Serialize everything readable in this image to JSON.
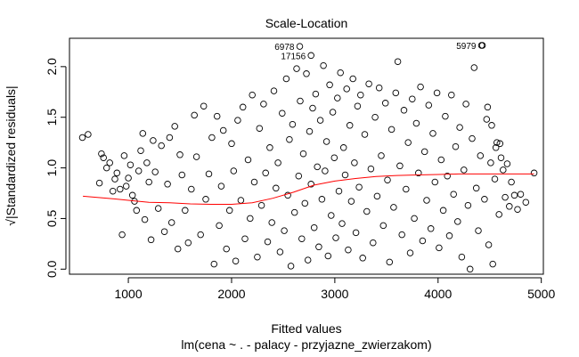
{
  "chart_data": {
    "type": "scatter",
    "title": "Scale-Location",
    "xlabel": "Fitted values",
    "subtitle": "lm(cena ~ . - palacy - przyjazne_zwierzakom)",
    "ylabel": "√|Standardized residuals|",
    "xlim": [
      430,
      5020
    ],
    "ylim": [
      -0.05,
      2.28
    ],
    "x_ticks": [
      {
        "value": 1000,
        "label": "1000"
      },
      {
        "value": 2000,
        "label": "2000"
      },
      {
        "value": 3000,
        "label": "3000"
      },
      {
        "value": 4000,
        "label": "4000"
      },
      {
        "value": 5000,
        "label": "5000"
      }
    ],
    "y_ticks": [
      {
        "value": 0.0,
        "label": "0.0"
      },
      {
        "value": 0.5,
        "label": "0.5"
      },
      {
        "value": 1.0,
        "label": "1.0"
      },
      {
        "value": 1.5,
        "label": "1.5"
      },
      {
        "value": 2.0,
        "label": "2.0"
      }
    ],
    "grid": false,
    "point_style": "open-circle",
    "point_color": "#000000",
    "smooth_color": "#ff0000",
    "smooth_line": [
      [
        560,
        0.72
      ],
      [
        800,
        0.7
      ],
      [
        1000,
        0.68
      ],
      [
        1200,
        0.66
      ],
      [
        1400,
        0.655
      ],
      [
        1600,
        0.645
      ],
      [
        1800,
        0.64
      ],
      [
        2000,
        0.64
      ],
      [
        2200,
        0.655
      ],
      [
        2400,
        0.7
      ],
      [
        2600,
        0.76
      ],
      [
        2800,
        0.83
      ],
      [
        3000,
        0.87
      ],
      [
        3200,
        0.895
      ],
      [
        3400,
        0.915
      ],
      [
        3600,
        0.925
      ],
      [
        3800,
        0.93
      ],
      [
        4000,
        0.935
      ],
      [
        4200,
        0.94
      ],
      [
        4400,
        0.94
      ],
      [
        4600,
        0.94
      ],
      [
        4800,
        0.94
      ],
      [
        4930,
        0.94
      ]
    ],
    "labeled_points": [
      {
        "id": "6978",
        "x": 2660,
        "y": 2.2
      },
      {
        "id": "17156",
        "x": 2770,
        "y": 2.11
      },
      {
        "id": "5979",
        "x": 4420,
        "y": 2.21
      }
    ],
    "points": [
      [
        555,
        1.3
      ],
      [
        610,
        1.33
      ],
      [
        720,
        0.85
      ],
      [
        740,
        1.14
      ],
      [
        760,
        1.1
      ],
      [
        790,
        1.0
      ],
      [
        820,
        1.05
      ],
      [
        850,
        0.77
      ],
      [
        870,
        0.89
      ],
      [
        890,
        0.95
      ],
      [
        920,
        0.79
      ],
      [
        940,
        0.34
      ],
      [
        960,
        1.12
      ],
      [
        980,
        0.82
      ],
      [
        1000,
        0.9
      ],
      [
        1020,
        1.03
      ],
      [
        1040,
        0.73
      ],
      [
        1060,
        0.67
      ],
      [
        1080,
        0.58
      ],
      [
        1100,
        0.97
      ],
      [
        1120,
        1.17
      ],
      [
        1140,
        1.34
      ],
      [
        1160,
        0.49
      ],
      [
        1180,
        1.05
      ],
      [
        1200,
        0.86
      ],
      [
        1220,
        0.29
      ],
      [
        1240,
        1.27
      ],
      [
        1260,
        0.96
      ],
      [
        1290,
        0.6
      ],
      [
        1320,
        1.22
      ],
      [
        1350,
        0.37
      ],
      [
        1380,
        0.84
      ],
      [
        1400,
        1.3
      ],
      [
        1420,
        0.46
      ],
      [
        1450,
        1.41
      ],
      [
        1480,
        0.2
      ],
      [
        1500,
        1.13
      ],
      [
        1520,
        0.93
      ],
      [
        1550,
        0.58
      ],
      [
        1580,
        0.26
      ],
      [
        1610,
        0.79
      ],
      [
        1640,
        1.52
      ],
      [
        1660,
        1.11
      ],
      [
        1700,
        0.34
      ],
      [
        1730,
        1.61
      ],
      [
        1750,
        0.69
      ],
      [
        1780,
        0.94
      ],
      [
        1810,
        1.3
      ],
      [
        1830,
        0.05
      ],
      [
        1860,
        1.51
      ],
      [
        1880,
        0.43
      ],
      [
        1900,
        0.82
      ],
      [
        1920,
        1.37
      ],
      [
        1950,
        0.2
      ],
      [
        1980,
        0.58
      ],
      [
        2000,
        1.24
      ],
      [
        2020,
        0.97
      ],
      [
        2040,
        0.08
      ],
      [
        2060,
        1.47
      ],
      [
        2090,
        0.68
      ],
      [
        2110,
        1.6
      ],
      [
        2130,
        0.3
      ],
      [
        2160,
        1.08
      ],
      [
        2180,
        0.5
      ],
      [
        2200,
        1.72
      ],
      [
        2220,
        0.86
      ],
      [
        2250,
        0.12
      ],
      [
        2270,
        1.39
      ],
      [
        2290,
        0.63
      ],
      [
        2310,
        1.63
      ],
      [
        2330,
        0.95
      ],
      [
        2350,
        0.27
      ],
      [
        2370,
        1.2
      ],
      [
        2390,
        0.46
      ],
      [
        2410,
        1.76
      ],
      [
        2430,
        0.8
      ],
      [
        2450,
        1.05
      ],
      [
        2470,
        0.17
      ],
      [
        2490,
        1.54
      ],
      [
        2510,
        0.38
      ],
      [
        2530,
        1.88
      ],
      [
        2545,
        0.73
      ],
      [
        2560,
        1.28
      ],
      [
        2575,
        0.03
      ],
      [
        2590,
        1.43
      ],
      [
        2610,
        0.56
      ],
      [
        2630,
        1.98
      ],
      [
        2650,
        0.92
      ],
      [
        2665,
        1.66
      ],
      [
        2680,
        0.3
      ],
      [
        2695,
        1.14
      ],
      [
        2710,
        0.65
      ],
      [
        2725,
        1.93
      ],
      [
        2740,
        0.09
      ],
      [
        2755,
        1.36
      ],
      [
        2770,
        0.84
      ],
      [
        2785,
        1.59
      ],
      [
        2800,
        0.41
      ],
      [
        2815,
        1.73
      ],
      [
        2830,
        1.01
      ],
      [
        2845,
        0.22
      ],
      [
        2860,
        1.47
      ],
      [
        2875,
        0.69
      ],
      [
        2890,
        2.01
      ],
      [
        2905,
        0.97
      ],
      [
        2920,
        1.26
      ],
      [
        2935,
        0.13
      ],
      [
        2950,
        1.82
      ],
      [
        2965,
        0.53
      ],
      [
        2980,
        1.55
      ],
      [
        2995,
        1.1
      ],
      [
        3010,
        0.31
      ],
      [
        3025,
        1.69
      ],
      [
        3040,
        0.77
      ],
      [
        3055,
        1.94
      ],
      [
        3070,
        0.45
      ],
      [
        3085,
        1.2
      ],
      [
        3100,
        0.93
      ],
      [
        3115,
        1.78
      ],
      [
        3130,
        0.19
      ],
      [
        3145,
        1.42
      ],
      [
        3160,
        0.67
      ],
      [
        3175,
        1.88
      ],
      [
        3190,
        1.05
      ],
      [
        3205,
        0.36
      ],
      [
        3220,
        1.61
      ],
      [
        3235,
        0.81
      ],
      [
        3250,
        1.72
      ],
      [
        3270,
        0.11
      ],
      [
        3290,
        1.33
      ],
      [
        3310,
        0.57
      ],
      [
        3330,
        1.83
      ],
      [
        3350,
        0.99
      ],
      [
        3370,
        0.26
      ],
      [
        3390,
        1.5
      ],
      [
        3410,
        0.72
      ],
      [
        3430,
        1.79
      ],
      [
        3450,
        1.12
      ],
      [
        3470,
        0.43
      ],
      [
        3490,
        1.64
      ],
      [
        3510,
        0.88
      ],
      [
        3530,
        0.07
      ],
      [
        3550,
        1.38
      ],
      [
        3570,
        0.61
      ],
      [
        3590,
        1.74
      ],
      [
        3610,
        2.05
      ],
      [
        3630,
        1.02
      ],
      [
        3650,
        0.34
      ],
      [
        3670,
        1.57
      ],
      [
        3690,
        0.79
      ],
      [
        3710,
        1.25
      ],
      [
        3730,
        0.16
      ],
      [
        3750,
        1.68
      ],
      [
        3770,
        0.5
      ],
      [
        3790,
        1.44
      ],
      [
        3810,
        0.95
      ],
      [
        3830,
        1.8
      ],
      [
        3850,
        0.28
      ],
      [
        3870,
        1.16
      ],
      [
        3890,
        0.68
      ],
      [
        3910,
        1.62
      ],
      [
        3930,
        0.4
      ],
      [
        3950,
        1.34
      ],
      [
        3970,
        0.86
      ],
      [
        3990,
        1.74
      ],
      [
        4010,
        0.21
      ],
      [
        4030,
        1.08
      ],
      [
        4050,
        0.58
      ],
      [
        4070,
        1.51
      ],
      [
        4090,
        0.92
      ],
      [
        4110,
        0.33
      ],
      [
        4130,
        1.72
      ],
      [
        4150,
        0.74
      ],
      [
        4170,
        1.21
      ],
      [
        4190,
        0.47
      ],
      [
        4210,
        1.4
      ],
      [
        4230,
        0.12
      ],
      [
        4250,
        0.98
      ],
      [
        4270,
        1.63
      ],
      [
        4290,
        0.63
      ],
      [
        4310,
        0.0
      ],
      [
        4330,
        1.29
      ],
      [
        4350,
        1.99
      ],
      [
        4370,
        0.8
      ],
      [
        4390,
        0.38
      ],
      [
        4410,
        1.12
      ],
      [
        4430,
        2.21
      ],
      [
        4450,
        0.69
      ],
      [
        4470,
        1.48
      ],
      [
        4490,
        0.24
      ],
      [
        4510,
        1.05
      ],
      [
        4530,
        0.05
      ],
      [
        4550,
        0.89
      ],
      [
        4570,
        1.25
      ],
      [
        4590,
        0.54
      ],
      [
        4610,
        1.1
      ],
      [
        4630,
        0.98
      ],
      [
        4650,
        0.71
      ],
      [
        4670,
        1.04
      ],
      [
        4690,
        0.62
      ],
      [
        4710,
        0.86
      ],
      [
        4740,
        0.73
      ],
      [
        4770,
        0.59
      ],
      [
        4800,
        0.74
      ],
      [
        4850,
        0.66
      ],
      [
        4930,
        0.95
      ],
      [
        4520,
        1.42
      ],
      [
        4480,
        1.6
      ],
      [
        4560,
        1.2
      ],
      [
        4600,
        1.24
      ]
    ]
  }
}
